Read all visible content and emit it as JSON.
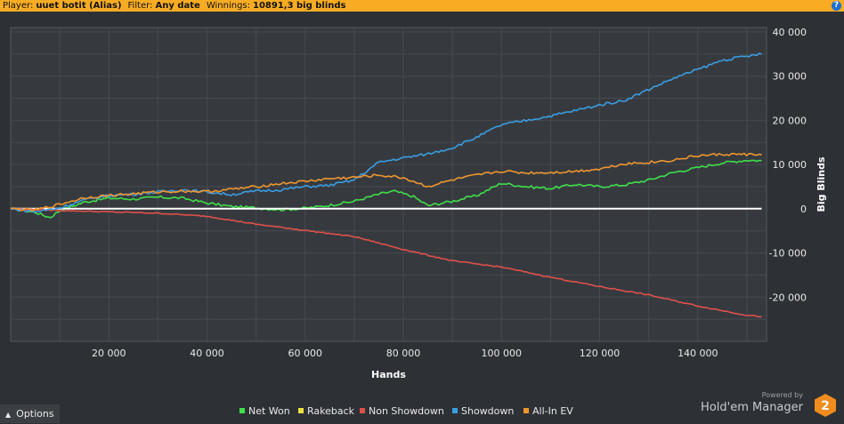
{
  "header": {
    "player_label": "Player:",
    "player_value": "uuet botit (Alias)",
    "filter_label": "Filter:",
    "filter_value": "Any date",
    "winnings_label": "Winnings:",
    "winnings_value": "10891,3 big blinds",
    "help_icon": "?"
  },
  "footer": {
    "options_label": "Options",
    "powered_by": "Powered by",
    "brand_name": "Hold'em Manager",
    "brand_badge": "2"
  },
  "colors": {
    "net_won": "#3fe04a",
    "rakeback": "#f0e040",
    "non_showdown": "#e0504a",
    "showdown": "#3a9de0",
    "all_in_ev": "#f0962e",
    "header_bg": "#f7ac24",
    "plot_bg": "#363a3f"
  },
  "chart_data": {
    "type": "line",
    "xlabel": "Hands",
    "ylabel": "Big Blinds",
    "xlim": [
      0,
      154000
    ],
    "ylim": [
      -30000,
      41000
    ],
    "x_ticks": [
      {
        "v": 20000,
        "label": "20 000"
      },
      {
        "v": 40000,
        "label": "40 000"
      },
      {
        "v": 60000,
        "label": "60 000"
      },
      {
        "v": 80000,
        "label": "80 000"
      },
      {
        "v": 100000,
        "label": "100 000"
      },
      {
        "v": 120000,
        "label": "120 000"
      },
      {
        "v": 140000,
        "label": "140 000"
      }
    ],
    "y_ticks": [
      {
        "v": 40000,
        "label": "40 000"
      },
      {
        "v": 30000,
        "label": "30 000"
      },
      {
        "v": 20000,
        "label": "20 000"
      },
      {
        "v": 10000,
        "label": "10 000"
      },
      {
        "v": 0,
        "label": "0"
      },
      {
        "v": -10000,
        "label": "-10 000"
      },
      {
        "v": -20000,
        "label": "-20 000"
      }
    ],
    "grid": true,
    "legend": "bottom",
    "series": [
      {
        "name": "Net Won",
        "color": "#3fe04a",
        "x": [
          0,
          5000,
          8000,
          10000,
          15000,
          20000,
          25000,
          30000,
          35000,
          40000,
          45000,
          50000,
          55000,
          60000,
          65000,
          70000,
          75000,
          78000,
          82000,
          85000,
          90000,
          95000,
          100000,
          105000,
          110000,
          115000,
          120000,
          125000,
          130000,
          135000,
          140000,
          145000,
          150000,
          153000
        ],
        "y": [
          0,
          -800,
          -2000,
          -400,
          1500,
          2400,
          2200,
          2600,
          2400,
          1300,
          500,
          200,
          -200,
          100,
          800,
          1700,
          3300,
          4000,
          2800,
          700,
          1700,
          3000,
          5800,
          5000,
          4600,
          5500,
          5000,
          5400,
          6500,
          8200,
          9300,
          10400,
          11000,
          10891
        ]
      },
      {
        "name": "Rakeback",
        "color": "#f0e040",
        "x": [
          0,
          153000
        ],
        "y": [
          0,
          0
        ]
      },
      {
        "name": "Non Showdown",
        "color": "#e0504a",
        "x": [
          0,
          10000,
          20000,
          30000,
          40000,
          50000,
          60000,
          70000,
          80000,
          90000,
          100000,
          110000,
          120000,
          130000,
          140000,
          150000,
          153000
        ],
        "y": [
          0,
          -400,
          -700,
          -1000,
          -1700,
          -3500,
          -4900,
          -6300,
          -9200,
          -11800,
          -13200,
          -15500,
          -17600,
          -19500,
          -22000,
          -24100,
          -24400
        ]
      },
      {
        "name": "Showdown",
        "color": "#3a9de0",
        "x": [
          0,
          5000,
          10000,
          15000,
          20000,
          25000,
          30000,
          35000,
          40000,
          45000,
          50000,
          55000,
          60000,
          65000,
          70000,
          75000,
          80000,
          85000,
          90000,
          95000,
          100000,
          105000,
          110000,
          115000,
          120000,
          125000,
          130000,
          135000,
          140000,
          145000,
          150000,
          153000
        ],
        "y": [
          0,
          -700,
          200,
          2000,
          3000,
          3300,
          3800,
          4300,
          3800,
          3200,
          4000,
          4300,
          5000,
          5300,
          6500,
          10500,
          11500,
          12400,
          13800,
          16200,
          19000,
          20000,
          21000,
          22200,
          23500,
          24500,
          27000,
          29500,
          31500,
          33600,
          34500,
          35000
        ]
      },
      {
        "name": "All-In EV",
        "color": "#f0962e",
        "x": [
          0,
          5000,
          10000,
          15000,
          20000,
          25000,
          30000,
          35000,
          40000,
          45000,
          50000,
          55000,
          60000,
          65000,
          70000,
          75000,
          80000,
          85000,
          90000,
          95000,
          100000,
          105000,
          110000,
          115000,
          120000,
          125000,
          130000,
          135000,
          140000,
          145000,
          150000,
          153000
        ],
        "y": [
          0,
          -300,
          1000,
          2500,
          3000,
          3400,
          3800,
          4000,
          3900,
          4400,
          5000,
          5700,
          6200,
          6800,
          7100,
          7600,
          7000,
          5000,
          6500,
          7600,
          8500,
          8100,
          8200,
          8500,
          9000,
          10200,
          10500,
          11000,
          12000,
          12300,
          12300,
          12200
        ]
      }
    ]
  }
}
